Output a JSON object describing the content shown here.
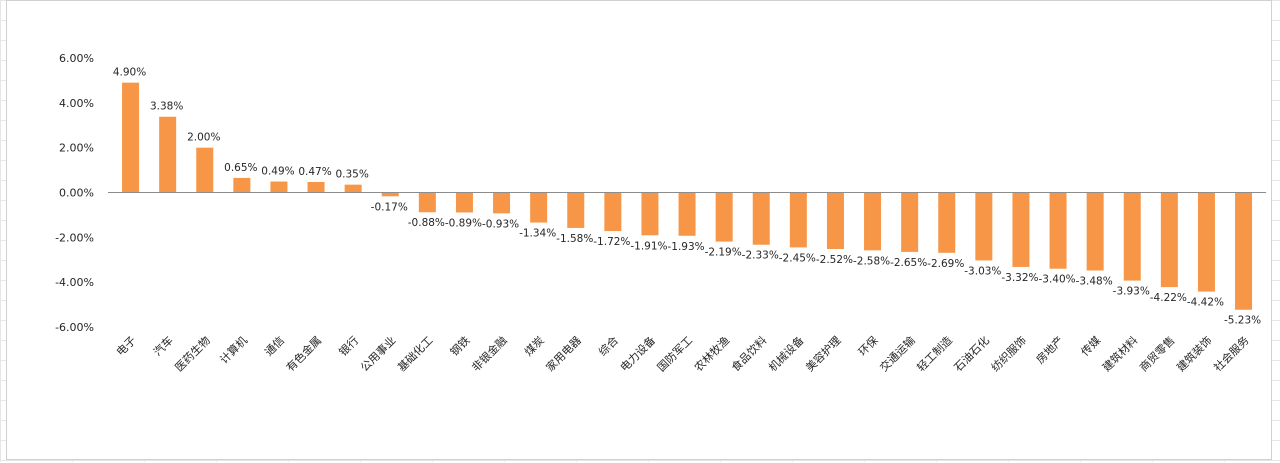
{
  "chart_data": {
    "type": "bar",
    "title": "",
    "xlabel": "",
    "ylabel": "",
    "ylim": [
      -6,
      6
    ],
    "yticks": [
      6,
      4,
      2,
      0,
      -2,
      -4,
      -6
    ],
    "ytick_labels": [
      "6.00%",
      "4.00%",
      "2.00%",
      "0.00%",
      "-2.00%",
      "-4.00%",
      "-6.00%"
    ],
    "grid": false,
    "bar_color": "#f79646",
    "categories": [
      "电子",
      "汽车",
      "医药生物",
      "计算机",
      "通信",
      "有色金属",
      "银行",
      "公用事业",
      "基础化工",
      "钢铁",
      "非银金融",
      "煤炭",
      "家用电器",
      "综合",
      "电力设备",
      "国防军工",
      "农林牧渔",
      "食品饮料",
      "机械设备",
      "美容护理",
      "环保",
      "交通运输",
      "轻工制造",
      "石油石化",
      "纺织服饰",
      "房地产",
      "传媒",
      "建筑材料",
      "商贸零售",
      "建筑装饰",
      "社会服务"
    ],
    "values": [
      4.9,
      3.38,
      2.0,
      0.65,
      0.49,
      0.47,
      0.35,
      -0.17,
      -0.88,
      -0.89,
      -0.93,
      -1.34,
      -1.58,
      -1.72,
      -1.91,
      -1.93,
      -2.19,
      -2.33,
      -2.45,
      -2.52,
      -2.58,
      -2.65,
      -2.69,
      -3.03,
      -3.32,
      -3.4,
      -3.48,
      -3.93,
      -4.22,
      -4.42,
      -5.23
    ],
    "value_labels": [
      "4.90%",
      "3.38%",
      "2.00%",
      "0.65%",
      "0.49%",
      "0.47%",
      "0.35%",
      "-0.17%",
      "-0.88%",
      "-0.89%",
      "-0.93%",
      "-1.34%",
      "-1.58%",
      "-1.72%",
      "-1.91%",
      "-1.93%",
      "-2.19%",
      "-2.33%",
      "-2.45%",
      "-2.52%",
      "-2.58%",
      "-2.65%",
      "-2.69%",
      "-3.03%",
      "-3.32%",
      "-3.40%",
      "-3.48%",
      "-3.93%",
      "-4.22%",
      "-4.42%",
      "-5.23%"
    ]
  }
}
